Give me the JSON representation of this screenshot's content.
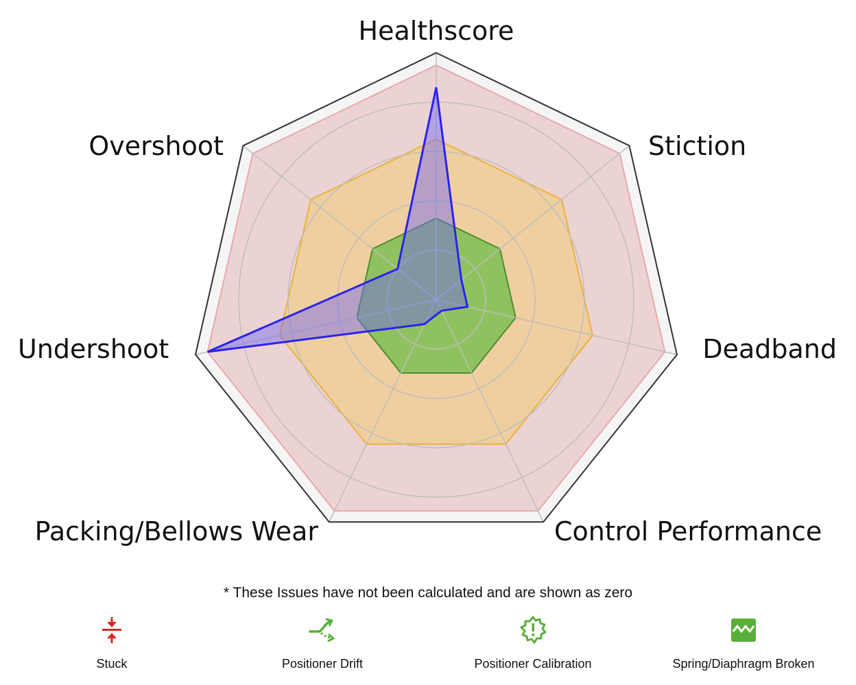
{
  "chart_data": {
    "type": "radar",
    "axes": [
      "Healthscore",
      "Stiction",
      "Deadband",
      "Control Performance",
      "Packing/Bellows Wear",
      "Undershoot",
      "Overshoot"
    ],
    "rmax": 1.0,
    "grid_levels": [
      0.2,
      0.4,
      0.6,
      0.8
    ],
    "grid": true,
    "bands": [
      {
        "level": 0.95,
        "fill": "#ecd3d3",
        "stroke": "#e8a8a8"
      },
      {
        "level": 0.65,
        "fill": "#efcf9f",
        "stroke": "#e8b23c"
      },
      {
        "level": 0.33,
        "fill": "#8fc25f",
        "stroke": "#4d8c2e"
      }
    ],
    "series": [
      {
        "values": [
          0.86,
          0.13,
          0.13,
          0.05,
          0.11,
          0.95,
          0.2
        ],
        "color": "#2a22ee",
        "fill": "rgba(110,100,245,0.45)"
      }
    ],
    "outer_fill": "#f5f5f5",
    "outer_stroke": "#333333"
  },
  "note": "* These Issues have not been calculated and are shown as zero",
  "legend": [
    {
      "label": "Stuck",
      "icon": "stuck-icon",
      "color": "#d8281f"
    },
    {
      "label": "Positioner Drift",
      "icon": "positioner-drift-icon",
      "color": "#5aae3a"
    },
    {
      "label": "Positioner Calibration",
      "icon": "positioner-calibration-icon",
      "color": "#5aae3a"
    },
    {
      "label": "Spring/Diaphragm Broken",
      "icon": "spring-diaphragm-broken-icon",
      "color": "#5aae3a"
    }
  ]
}
